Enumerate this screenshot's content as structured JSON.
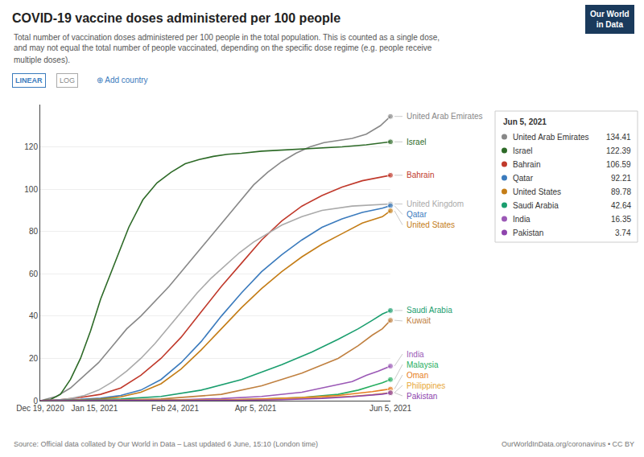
{
  "chart_data": {
    "type": "line",
    "title": "COVID-19 vaccine doses administered per 100 people",
    "subtitle": [
      "Total number of vaccination doses administered per 100 people in the total population. This is counted as a single dose,",
      "and may not equal the total number of people vaccinated, depending on the specific dose regime (e.g. people receive",
      "multiple doses)."
    ],
    "buttons": [
      "LINEAR",
      "LOG"
    ],
    "add_country": "⊕ Add country",
    "logo": [
      "Our World",
      "in Data"
    ],
    "source": "Source: Official data collated by Our World in Data – Last updated 6 June, 15:10 (London time)",
    "source_right": "OurWorldInData.org/coronavirus • CC BY",
    "grid": "y",
    "xlim": [
      0,
      174
    ],
    "xticks": [
      {
        "value": 0,
        "label": "Dec 19, 2020"
      },
      {
        "value": 27,
        "label": "Jan 15, 2021"
      },
      {
        "value": 67,
        "label": "Feb 24, 2021"
      },
      {
        "value": 107,
        "label": "Apr 5, 2021"
      },
      {
        "value": 174,
        "label": "Jun 5, 2021"
      }
    ],
    "ylim": [
      0,
      140
    ],
    "yticks": [
      0,
      20,
      40,
      60,
      80,
      100,
      120
    ],
    "series": [
      {
        "name": "United Arab Emirates",
        "color": "#888888",
        "marker": "last",
        "x": [
          0,
          8,
          15,
          22,
          29,
          36,
          43,
          50,
          57,
          64,
          71,
          78,
          85,
          92,
          99,
          106,
          113,
          120,
          127,
          134,
          141,
          148,
          155,
          162,
          169,
          174
        ],
        "values": [
          0,
          2,
          6,
          12,
          18,
          26,
          34,
          40,
          47,
          54,
          62,
          70,
          78,
          86,
          94,
          102,
          108,
          113,
          117,
          120,
          122,
          123,
          124,
          126,
          130,
          134.41
        ]
      },
      {
        "name": "Israel",
        "color": "#2d6a27",
        "marker": "last",
        "x": [
          0,
          5,
          10,
          15,
          20,
          25,
          30,
          37,
          44,
          51,
          58,
          65,
          72,
          79,
          86,
          93,
          100,
          110,
          120,
          135,
          150,
          162,
          174
        ],
        "values": [
          0,
          0.5,
          3,
          10,
          20,
          33,
          48,
          65,
          82,
          95,
          103,
          108,
          112,
          114,
          115.5,
          116.5,
          117,
          118,
          118.5,
          119,
          120,
          121,
          122.39
        ]
      },
      {
        "name": "Bahrain",
        "color": "#c0392b",
        "marker": "last",
        "x": [
          0,
          10,
          20,
          30,
          40,
          50,
          60,
          70,
          80,
          90,
          100,
          110,
          120,
          130,
          140,
          150,
          160,
          170,
          174
        ],
        "values": [
          0,
          0.5,
          1.5,
          3,
          6,
          12,
          20,
          30,
          42,
          54,
          65,
          76,
          85,
          92,
          97,
          101,
          104,
          106,
          106.59
        ]
      },
      {
        "name": "United Kingdom",
        "color": "#aaaaaa",
        "marker": "last",
        "x": [
          0,
          8,
          15,
          22,
          29,
          36,
          43,
          50,
          57,
          64,
          71,
          78,
          85,
          92,
          99,
          106,
          113,
          120,
          130,
          140,
          155,
          174
        ],
        "values": [
          0,
          0.3,
          1,
          2.5,
          5,
          9,
          14,
          20,
          27,
          35,
          43,
          51,
          58,
          64,
          70,
          75,
          79,
          83,
          87,
          90,
          92,
          93.0
        ]
      },
      {
        "name": "Qatar",
        "color": "#3b7bbd",
        "marker": "last",
        "x": [
          0,
          10,
          20,
          30,
          40,
          50,
          60,
          70,
          80,
          90,
          100,
          110,
          120,
          130,
          140,
          150,
          160,
          170,
          174
        ],
        "values": [
          0,
          0.2,
          0.6,
          1.2,
          2.5,
          5,
          10,
          18,
          28,
          40,
          51,
          61,
          69,
          76,
          82,
          86,
          89,
          91,
          92.21
        ]
      },
      {
        "name": "United States",
        "color": "#c47d17",
        "marker": "last",
        "x": [
          0,
          10,
          20,
          30,
          40,
          50,
          60,
          70,
          80,
          90,
          100,
          110,
          120,
          130,
          140,
          150,
          160,
          170,
          174
        ],
        "values": [
          0,
          0.1,
          0.4,
          0.8,
          1.8,
          4,
          8,
          15,
          24,
          34,
          44,
          53,
          61,
          68,
          74,
          79,
          84,
          87,
          89.78
        ]
      },
      {
        "name": "Saudi Arabia",
        "color": "#1a9e6e",
        "marker": "last",
        "x": [
          0,
          20,
          40,
          60,
          80,
          100,
          120,
          135,
          148,
          158,
          165,
          170,
          174
        ],
        "values": [
          0,
          0.2,
          0.8,
          2,
          5,
          10,
          17,
          23,
          29,
          34,
          38,
          41,
          42.64
        ]
      },
      {
        "name": "Kuwait",
        "color": "#c08040",
        "marker": "last",
        "x": [
          0,
          30,
          60,
          90,
          110,
          130,
          148,
          158,
          165,
          170,
          174
        ],
        "values": [
          0,
          0.2,
          0.8,
          3,
          7,
          13,
          20,
          26,
          31,
          34,
          38.0
        ]
      },
      {
        "name": "India",
        "color": "#9b59b6",
        "marker": "last",
        "x": [
          0,
          40,
          70,
          90,
          110,
          130,
          145,
          155,
          162,
          168,
          174
        ],
        "values": [
          0,
          0.2,
          0.5,
          1,
          2,
          4,
          7,
          9,
          12,
          14,
          16.35
        ]
      },
      {
        "name": "Malaysia",
        "color": "#27ae60",
        "marker": "last",
        "x": [
          0,
          60,
          90,
          110,
          130,
          148,
          158,
          165,
          170,
          174
        ],
        "values": [
          0,
          0.1,
          0.3,
          0.7,
          1.5,
          3,
          5,
          7,
          8.5,
          10.0
        ]
      },
      {
        "name": "Oman",
        "color": "#e67e22",
        "marker": "last",
        "x": [
          0,
          60,
          90,
          110,
          130,
          148,
          158,
          165,
          170,
          174
        ],
        "values": [
          0,
          0.1,
          0.4,
          0.8,
          1.5,
          2.5,
          3.5,
          4.3,
          5.0,
          5.5
        ]
      },
      {
        "name": "Philippines",
        "color": "#e8a838",
        "marker": "last",
        "x": [
          0,
          70,
          100,
          120,
          140,
          155,
          165,
          170,
          174
        ],
        "values": [
          0,
          0.1,
          0.3,
          0.7,
          1.4,
          2.1,
          2.8,
          3.3,
          3.8
        ]
      },
      {
        "name": "Pakistan",
        "color": "#8e44ad",
        "marker": "last",
        "x": [
          0,
          70,
          100,
          120,
          140,
          155,
          165,
          170,
          174
        ],
        "values": [
          0,
          0.05,
          0.2,
          0.5,
          1.1,
          1.9,
          2.6,
          3.1,
          3.74
        ]
      }
    ],
    "tooltip": {
      "title": "Jun 5, 2021",
      "rows": [
        {
          "name": "United Arab Emirates",
          "value": 134.41,
          "color": "#888888"
        },
        {
          "name": "Israel",
          "value": 122.39,
          "color": "#2d6a27"
        },
        {
          "name": "Bahrain",
          "value": 106.59,
          "color": "#c0392b"
        },
        {
          "name": "Qatar",
          "value": 92.21,
          "color": "#3b7bbd"
        },
        {
          "name": "United States",
          "value": 89.78,
          "color": "#c47d17"
        },
        {
          "name": "Saudi Arabia",
          "value": 42.64,
          "color": "#1a9e6e"
        },
        {
          "name": "India",
          "value": 16.35,
          "color": "#9b59b6"
        },
        {
          "name": "Pakistan",
          "value": 3.74,
          "color": "#8e44ad"
        }
      ]
    }
  }
}
